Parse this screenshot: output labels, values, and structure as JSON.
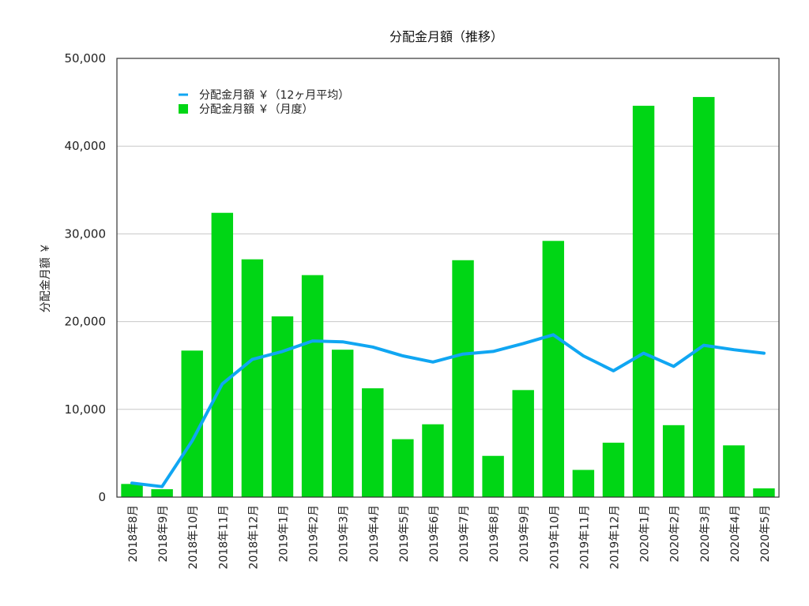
{
  "chart_data": {
    "type": "bar",
    "title": "分配金月額（推移）",
    "xlabel": "",
    "ylabel": "分配金月額 ￥",
    "ylim": [
      0,
      50000
    ],
    "yticks": [
      0,
      10000,
      20000,
      30000,
      40000,
      50000
    ],
    "ytick_labels": [
      "0",
      "10,000",
      "20,000",
      "30,000",
      "40,000",
      "50,000"
    ],
    "grid": true,
    "legend_position": "top-left",
    "categories": [
      "2018年8月",
      "2018年9月",
      "2018年10月",
      "2018年11月",
      "2018年12月",
      "2019年1月",
      "2019年2月",
      "2019年3月",
      "2019年4月",
      "2019年5月",
      "2019年6月",
      "2019年7月",
      "2019年8月",
      "2019年9月",
      "2019年10月",
      "2019年11月",
      "2019年12月",
      "2020年1月",
      "2020年2月",
      "2020年3月",
      "2020年4月",
      "2020年5月"
    ],
    "series": [
      {
        "name": "分配金月額 ￥（月度）",
        "kind": "bar",
        "color": "#00d615",
        "values": [
          1500,
          900,
          16700,
          32400,
          27100,
          20600,
          25300,
          16800,
          12400,
          6600,
          8300,
          27000,
          4700,
          12200,
          29200,
          3100,
          6200,
          44600,
          8200,
          45600,
          5900,
          1000
        ]
      },
      {
        "name": "分配金月額 ￥（12ヶ月平均）",
        "kind": "line",
        "color": "#10a6f2",
        "values": [
          1600,
          1200,
          6400,
          12900,
          15700,
          16600,
          17800,
          17700,
          17100,
          16100,
          15400,
          16300,
          16600,
          17500,
          18500,
          16100,
          14400,
          16400,
          14900,
          17300,
          16800,
          16400
        ]
      }
    ]
  }
}
